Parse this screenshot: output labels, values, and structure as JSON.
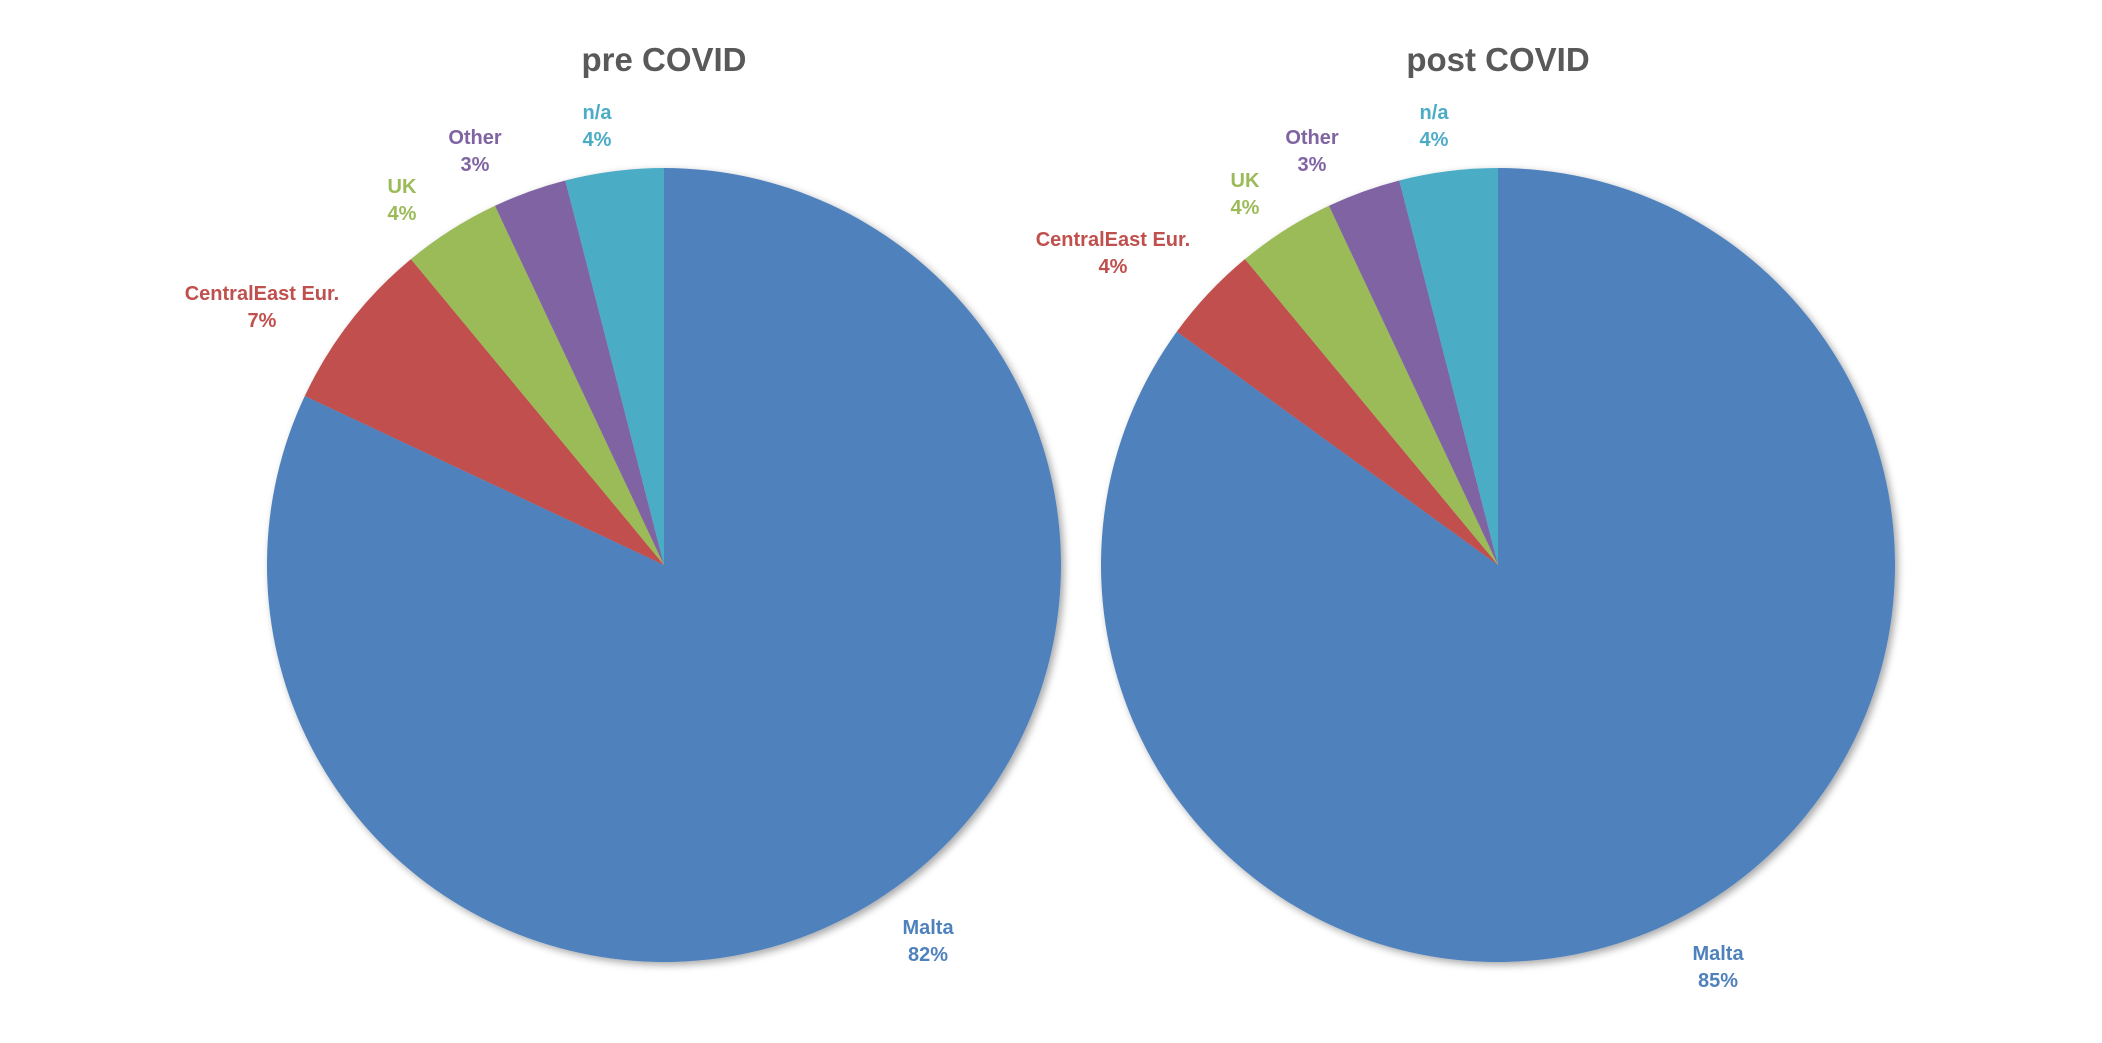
{
  "chart_data": [
    {
      "type": "pie",
      "title": "pre COVID",
      "start_angle_deg": 0,
      "direction": "clockwise",
      "shadow": true,
      "slices": [
        {
          "label": "Malta",
          "value": 82,
          "display": "82%",
          "color": "#4F81BD"
        },
        {
          "label": "CentralEast Eur.",
          "value": 7,
          "display": "7%",
          "color": "#C0504D"
        },
        {
          "label": "UK",
          "value": 4,
          "display": "4%",
          "color": "#9BBB59"
        },
        {
          "label": "Other",
          "value": 3,
          "display": "3%",
          "color": "#8064A2"
        },
        {
          "label": "n/a",
          "value": 4,
          "display": "4%",
          "color": "#4BACC6"
        }
      ]
    },
    {
      "type": "pie",
      "title": "post COVID",
      "start_angle_deg": 0,
      "direction": "clockwise",
      "shadow": true,
      "slices": [
        {
          "label": "Malta",
          "value": 85,
          "display": "85%",
          "color": "#4F81BD"
        },
        {
          "label": "CentralEast Eur.",
          "value": 4,
          "display": "4%",
          "color": "#C0504D"
        },
        {
          "label": "UK",
          "value": 4,
          "display": "4%",
          "color": "#9BBB59"
        },
        {
          "label": "Other",
          "value": 3,
          "display": "3%",
          "color": "#8064A2"
        },
        {
          "label": "n/a",
          "value": 4,
          "display": "4%",
          "color": "#4BACC6"
        }
      ]
    }
  ]
}
